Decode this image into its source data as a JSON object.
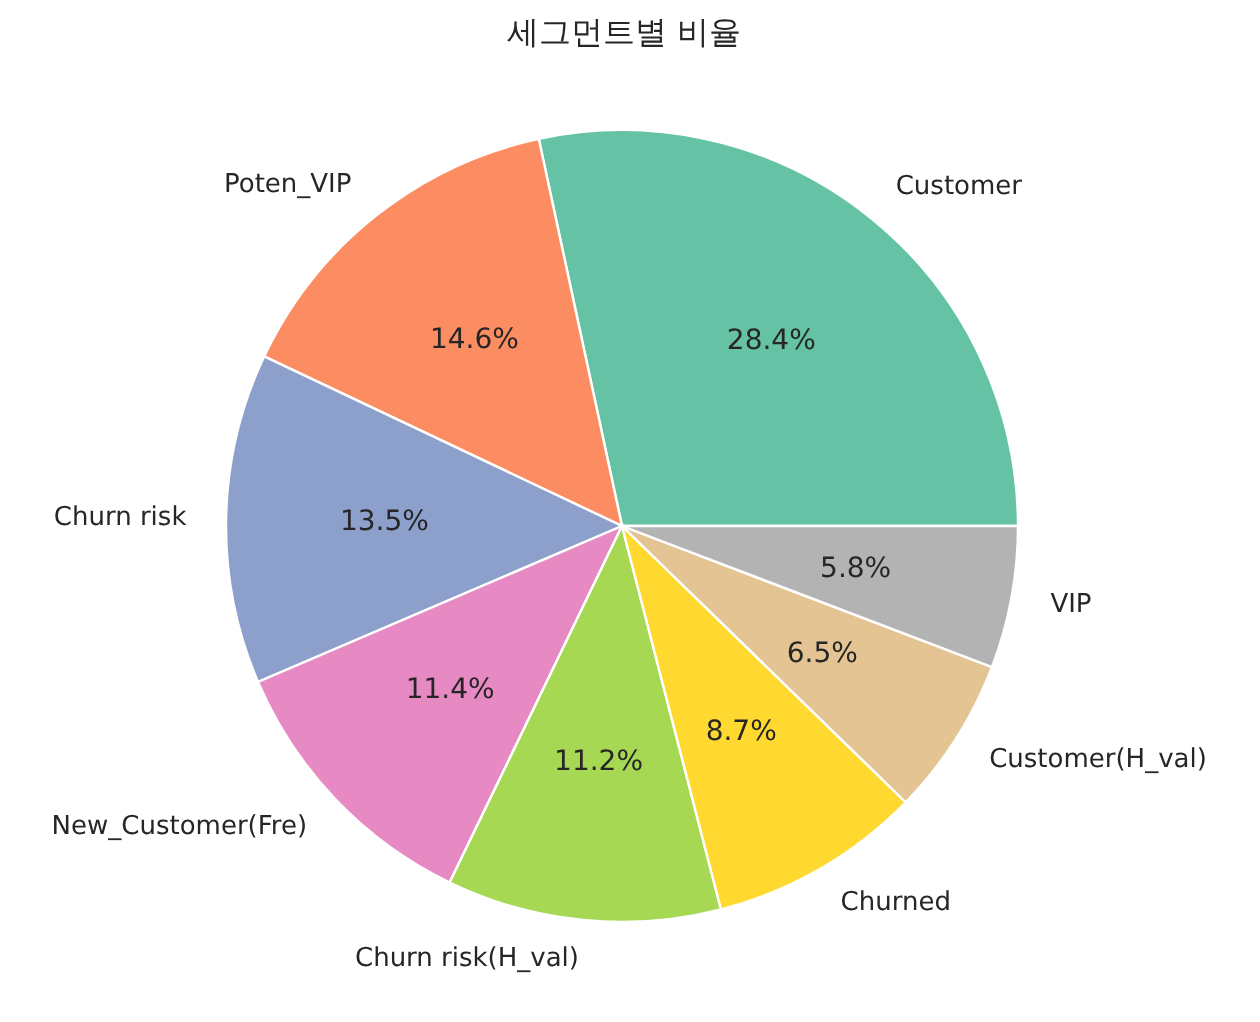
{
  "chart_data": {
    "type": "pie",
    "title": "세그먼트별 비율",
    "categories": [
      "Customer",
      "Poten_VIP",
      "Churn risk",
      "New_Customer(Fre)",
      "Churn risk(H_val)",
      "Churned",
      "Customer(H_val)",
      "VIP"
    ],
    "values": [
      28.4,
      14.6,
      13.5,
      11.4,
      11.2,
      8.7,
      6.5,
      5.8
    ],
    "value_labels": [
      "28.4%",
      "14.6%",
      "13.5%",
      "11.4%",
      "11.2%",
      "8.7%",
      "6.5%",
      "5.8%"
    ],
    "colors": [
      "#66c2a5",
      "#fc8d62",
      "#8da0cb",
      "#e78ac3",
      "#a6d854",
      "#ffd92f",
      "#e5c494",
      "#b3b3b3"
    ]
  }
}
